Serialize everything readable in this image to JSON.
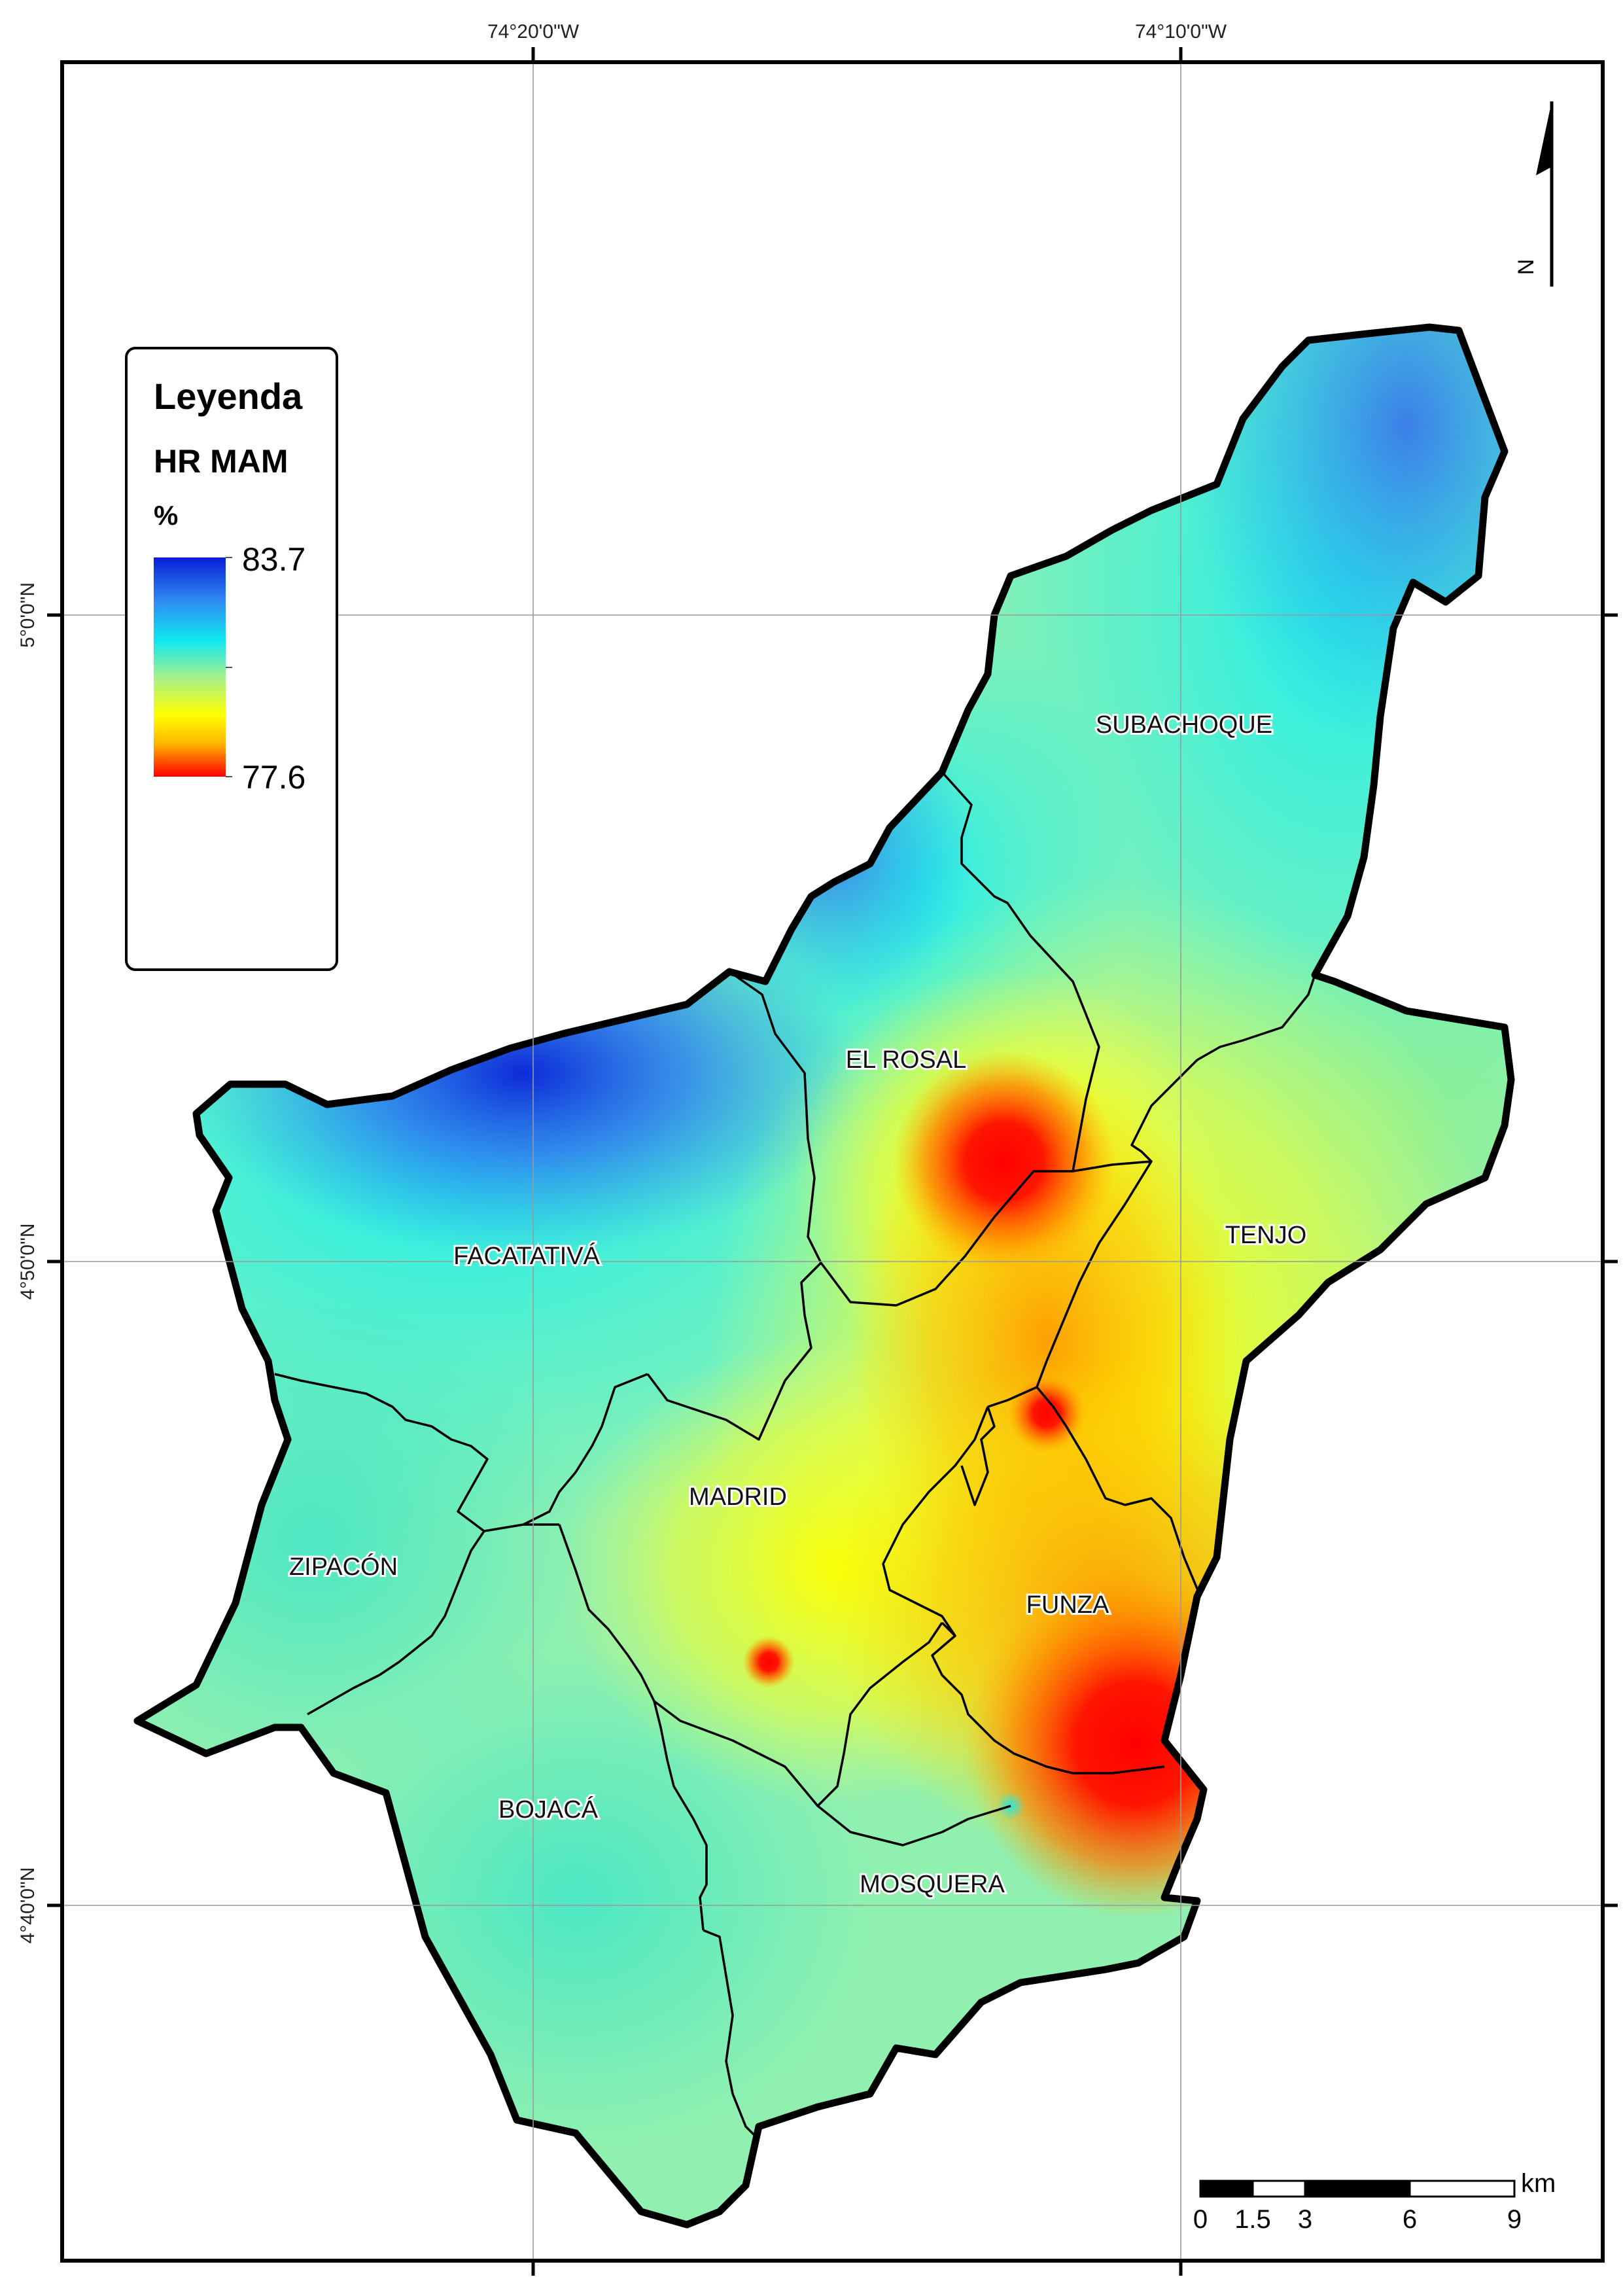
{
  "graticule": {
    "top_labels": [
      "74°20'0\"W",
      "74°10'0\"W"
    ],
    "left_labels": [
      "5°0'0\"N",
      "4°50'0\"N",
      "4°40'0\"N"
    ]
  },
  "legend": {
    "title": "Leyenda",
    "variable": "HR MAM",
    "unit": "%",
    "max_label": "83.7",
    "min_label": "77.6",
    "max_value": 83.7,
    "min_value": 77.6,
    "colors": [
      "#0a1fd8",
      "#2f8cf2",
      "#10e8f0",
      "#a8f08a",
      "#ffff00",
      "#ffb400",
      "#ff0000"
    ]
  },
  "municipalities": [
    "SUBACHOQUE",
    "EL ROSAL",
    "TENJO",
    "FACATATIVÁ",
    "MADRID",
    "ZIPACÓN",
    "FUNZA",
    "BOJACÁ",
    "MOSQUERA"
  ],
  "scale_bar": {
    "unit": "km",
    "ticks": [
      "0",
      "1.5",
      "3",
      "6",
      "9"
    ]
  },
  "north_arrow": {
    "label": "N",
    "icon": "north-arrow-icon"
  }
}
